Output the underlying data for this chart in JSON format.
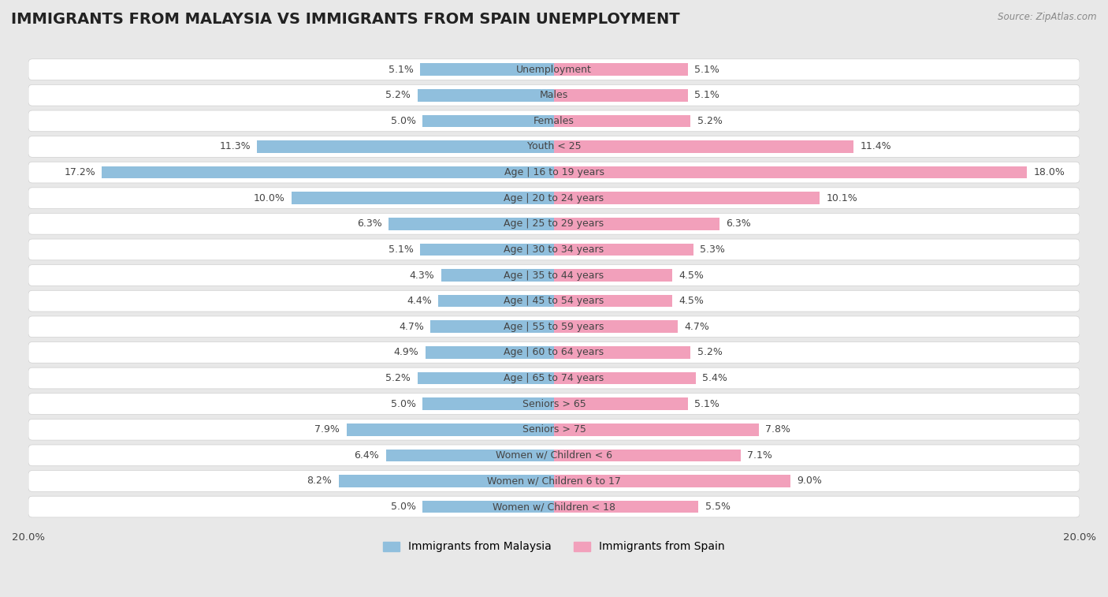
{
  "title": "IMMIGRANTS FROM MALAYSIA VS IMMIGRANTS FROM SPAIN UNEMPLOYMENT",
  "source": "Source: ZipAtlas.com",
  "categories": [
    "Unemployment",
    "Males",
    "Females",
    "Youth < 25",
    "Age | 16 to 19 years",
    "Age | 20 to 24 years",
    "Age | 25 to 29 years",
    "Age | 30 to 34 years",
    "Age | 35 to 44 years",
    "Age | 45 to 54 years",
    "Age | 55 to 59 years",
    "Age | 60 to 64 years",
    "Age | 65 to 74 years",
    "Seniors > 65",
    "Seniors > 75",
    "Women w/ Children < 6",
    "Women w/ Children 6 to 17",
    "Women w/ Children < 18"
  ],
  "malaysia_values": [
    5.1,
    5.2,
    5.0,
    11.3,
    17.2,
    10.0,
    6.3,
    5.1,
    4.3,
    4.4,
    4.7,
    4.9,
    5.2,
    5.0,
    7.9,
    6.4,
    8.2,
    5.0
  ],
  "spain_values": [
    5.1,
    5.1,
    5.2,
    11.4,
    18.0,
    10.1,
    6.3,
    5.3,
    4.5,
    4.5,
    4.7,
    5.2,
    5.4,
    5.1,
    7.8,
    7.1,
    9.0,
    5.5
  ],
  "malaysia_color": "#90bfdd",
  "spain_color": "#f2a0bb",
  "background_color": "#e8e8e8",
  "row_bg_color": "#ffffff",
  "row_border_color": "#d0d0d0",
  "max_value": 20.0,
  "legend_malaysia": "Immigrants from Malaysia",
  "legend_spain": "Immigrants from Spain",
  "title_fontsize": 14,
  "label_fontsize": 9,
  "value_fontsize": 9,
  "axis_tick_fontsize": 9.5
}
